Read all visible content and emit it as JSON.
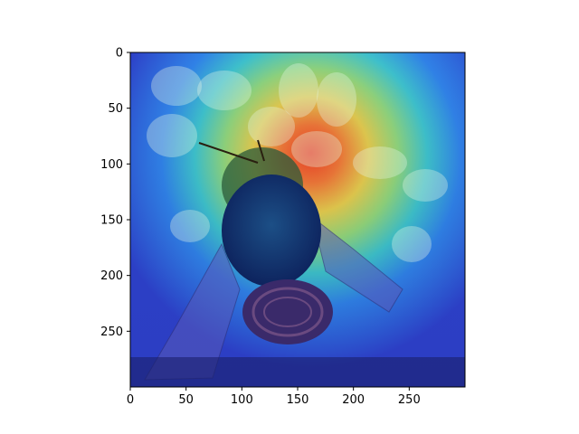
{
  "chart_data": {
    "type": "heatmap",
    "description_kind": "image overlaid with attention heatmap (jet colormap)",
    "image_size": [
      300,
      300
    ],
    "xlim": [
      0,
      300
    ],
    "ylim": [
      300,
      0
    ],
    "xticks": [
      0,
      50,
      100,
      150,
      200,
      250
    ],
    "yticks": [
      0,
      50,
      100,
      150,
      200,
      250
    ],
    "title": "",
    "xlabel": "",
    "ylabel": "",
    "colormap": "jet",
    "hotspot_center": [
      160,
      95
    ]
  }
}
